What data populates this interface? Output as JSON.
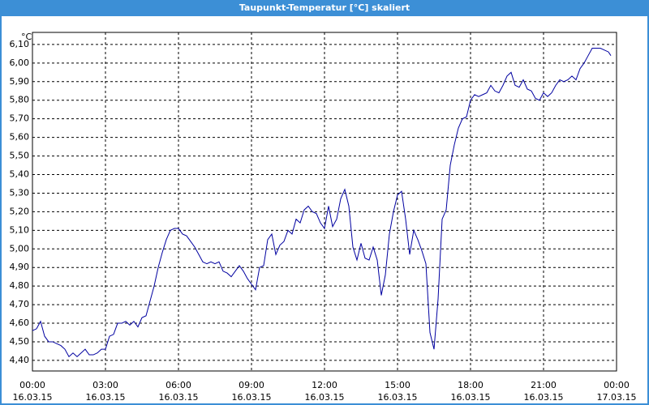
{
  "chart_data": {
    "type": "line",
    "title": "Taupunkt-Temperatur [°C] skaliert",
    "y_unit": "°C",
    "x": [
      0,
      10,
      20,
      30,
      40,
      50,
      60,
      70,
      80,
      90,
      100,
      110,
      120,
      130,
      140,
      150,
      160,
      170,
      180,
      190,
      200,
      210,
      220,
      230,
      240,
      250,
      260,
      270,
      280,
      290,
      300,
      310,
      320,
      330,
      340,
      350,
      360,
      370,
      380,
      390,
      400,
      410,
      420,
      430,
      440,
      450,
      460,
      470,
      480,
      490,
      500,
      510,
      520,
      530,
      540,
      550,
      560,
      570,
      580,
      590,
      600,
      610,
      620,
      630,
      640,
      650,
      660,
      670,
      680,
      690,
      700,
      710,
      720,
      730,
      740,
      750,
      760,
      770,
      780,
      790,
      800,
      810,
      820,
      830,
      840,
      850,
      860,
      870,
      880,
      890,
      900,
      910,
      920,
      930,
      940,
      950,
      960,
      970,
      980,
      990,
      1000,
      1010,
      1020,
      1030,
      1040,
      1050,
      1060,
      1070,
      1080,
      1090,
      1100,
      1110,
      1120,
      1130,
      1140,
      1150,
      1160,
      1170,
      1180,
      1190,
      1200,
      1210,
      1220,
      1230,
      1240,
      1250,
      1260,
      1270,
      1280,
      1290,
      1300,
      1310,
      1320,
      1330,
      1340,
      1350,
      1360,
      1370,
      1380,
      1390,
      1400,
      1410,
      1420,
      1426
    ],
    "series": [
      {
        "name": "Taupunkt-Temperatur",
        "color": "#0000a0",
        "values": [
          4.56,
          4.57,
          4.61,
          4.53,
          4.5,
          4.5,
          4.49,
          4.48,
          4.46,
          4.42,
          4.44,
          4.42,
          4.44,
          4.46,
          4.43,
          4.43,
          4.44,
          4.46,
          4.46,
          4.53,
          4.54,
          4.6,
          4.6,
          4.61,
          4.59,
          4.61,
          4.58,
          4.63,
          4.64,
          4.72,
          4.8,
          4.9,
          4.98,
          5.05,
          5.1,
          5.11,
          5.11,
          5.08,
          5.07,
          5.04,
          5.01,
          4.97,
          4.93,
          4.92,
          4.93,
          4.92,
          4.93,
          4.88,
          4.87,
          4.85,
          4.88,
          4.91,
          4.88,
          4.84,
          4.81,
          4.78,
          4.9,
          4.91,
          5.05,
          5.08,
          4.97,
          5.02,
          5.04,
          5.1,
          5.08,
          5.16,
          5.14,
          5.21,
          5.23,
          5.2,
          5.19,
          5.14,
          5.11,
          5.23,
          5.12,
          5.16,
          5.27,
          5.32,
          5.23,
          5.01,
          4.94,
          5.03,
          4.95,
          4.94,
          5.01,
          4.94,
          4.75,
          4.86,
          5.08,
          5.2,
          5.29,
          5.31,
          5.16,
          4.97,
          5.1,
          5.05,
          4.99,
          4.92,
          4.55,
          4.46,
          4.73,
          5.16,
          5.21,
          5.45,
          5.56,
          5.65,
          5.7,
          5.71,
          5.8,
          5.83,
          5.82,
          5.83,
          5.84,
          5.88,
          5.85,
          5.84,
          5.88,
          5.93,
          5.95,
          5.88,
          5.87,
          5.91,
          5.86,
          5.85,
          5.81,
          5.8,
          5.84,
          5.82,
          5.84,
          5.88,
          5.91,
          5.9,
          5.91,
          5.93,
          5.91,
          5.97,
          6.0,
          6.04,
          6.08,
          6.08,
          6.08,
          6.07,
          6.06,
          6.04
        ]
      }
    ],
    "xlim": [
      0,
      1440
    ],
    "xticks": [
      {
        "value": 0,
        "label": "00:00"
      },
      {
        "value": 180,
        "label": "03:00"
      },
      {
        "value": 360,
        "label": "06:00"
      },
      {
        "value": 540,
        "label": "09:00"
      },
      {
        "value": 720,
        "label": "12:00"
      },
      {
        "value": 900,
        "label": "15:00"
      },
      {
        "value": 1080,
        "label": "18:00"
      },
      {
        "value": 1260,
        "label": "21:00"
      },
      {
        "value": 1440,
        "label": "00:00"
      }
    ],
    "xtick_dates": [
      "16.03.15",
      "16.03.15",
      "16.03.15",
      "16.03.15",
      "16.03.15",
      "16.03.15",
      "16.03.15",
      "16.03.15",
      "17.03.15"
    ],
    "ylim": [
      4.343,
      6.165
    ],
    "yticks": [
      {
        "value": 4.4,
        "label": "4,40"
      },
      {
        "value": 4.5,
        "label": "4,50"
      },
      {
        "value": 4.6,
        "label": "4,60"
      },
      {
        "value": 4.7,
        "label": "4,70"
      },
      {
        "value": 4.8,
        "label": "4,80"
      },
      {
        "value": 4.9,
        "label": "4,90"
      },
      {
        "value": 5.0,
        "label": "5,00"
      },
      {
        "value": 5.1,
        "label": "5,10"
      },
      {
        "value": 5.2,
        "label": "5,20"
      },
      {
        "value": 5.3,
        "label": "5,30"
      },
      {
        "value": 5.4,
        "label": "5,40"
      },
      {
        "value": 5.5,
        "label": "5,50"
      },
      {
        "value": 5.6,
        "label": "5,60"
      },
      {
        "value": 5.7,
        "label": "5,70"
      },
      {
        "value": 5.8,
        "label": "5,80"
      },
      {
        "value": 5.9,
        "label": "5,90"
      },
      {
        "value": 6.0,
        "label": "6,00"
      },
      {
        "value": 6.1,
        "label": "6,10"
      }
    ],
    "grid": true
  }
}
